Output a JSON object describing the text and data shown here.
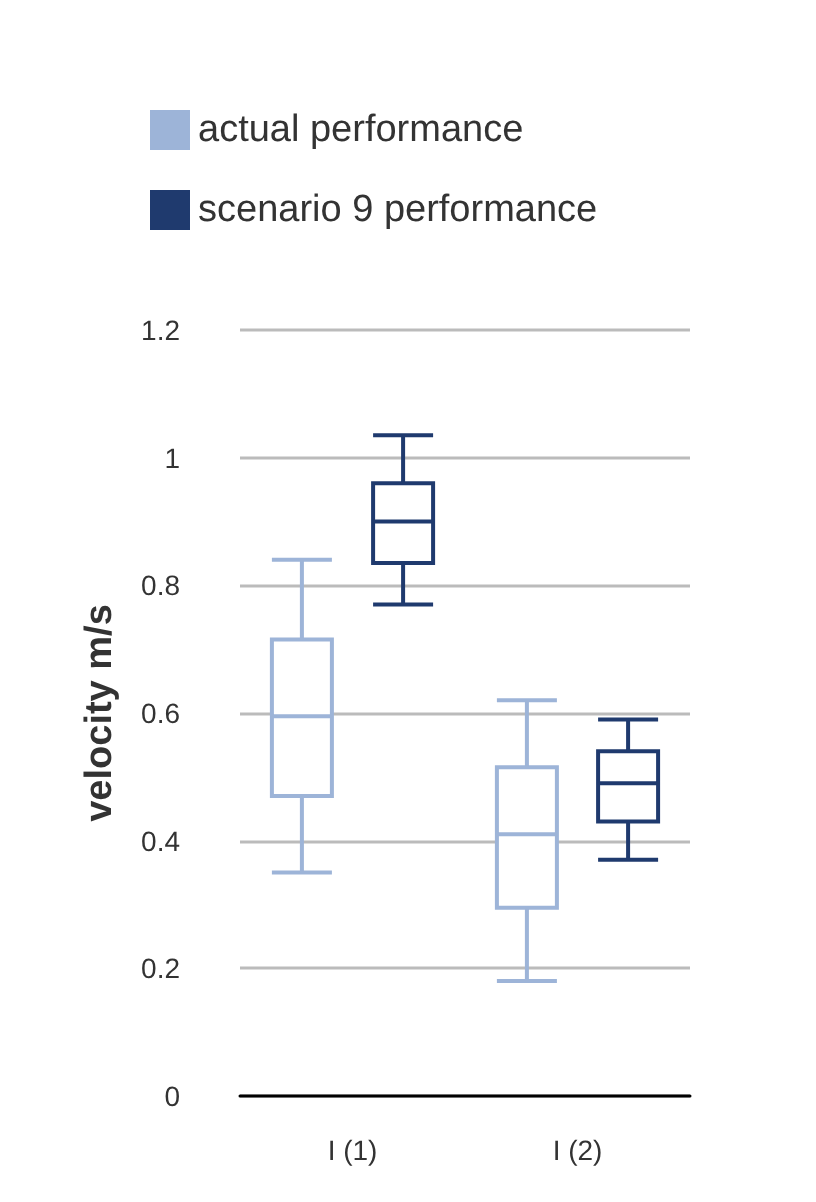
{
  "chart_data": {
    "type": "box",
    "ylabel": "velocity m/s",
    "categories": [
      "I (1)",
      "I (2)"
    ],
    "series": [
      {
        "name": "actual performance",
        "color": "#9db4d8",
        "boxes": [
          {
            "low": 0.35,
            "q1": 0.47,
            "median": 0.595,
            "q3": 0.715,
            "high": 0.84
          },
          {
            "low": 0.18,
            "q1": 0.295,
            "median": 0.41,
            "q3": 0.515,
            "high": 0.62
          }
        ]
      },
      {
        "name": "scenario 9 performance",
        "color": "#1f3a6e",
        "boxes": [
          {
            "low": 0.77,
            "q1": 0.835,
            "median": 0.9,
            "q3": 0.96,
            "high": 1.035
          },
          {
            "low": 0.37,
            "q1": 0.43,
            "median": 0.49,
            "q3": 0.54,
            "high": 0.59
          }
        ]
      }
    ],
    "ylim": [
      0,
      1.2
    ],
    "yticks": [
      0,
      0.2,
      0.4,
      0.6,
      0.8,
      1,
      1.2
    ],
    "grid": "y",
    "legend": "top"
  }
}
